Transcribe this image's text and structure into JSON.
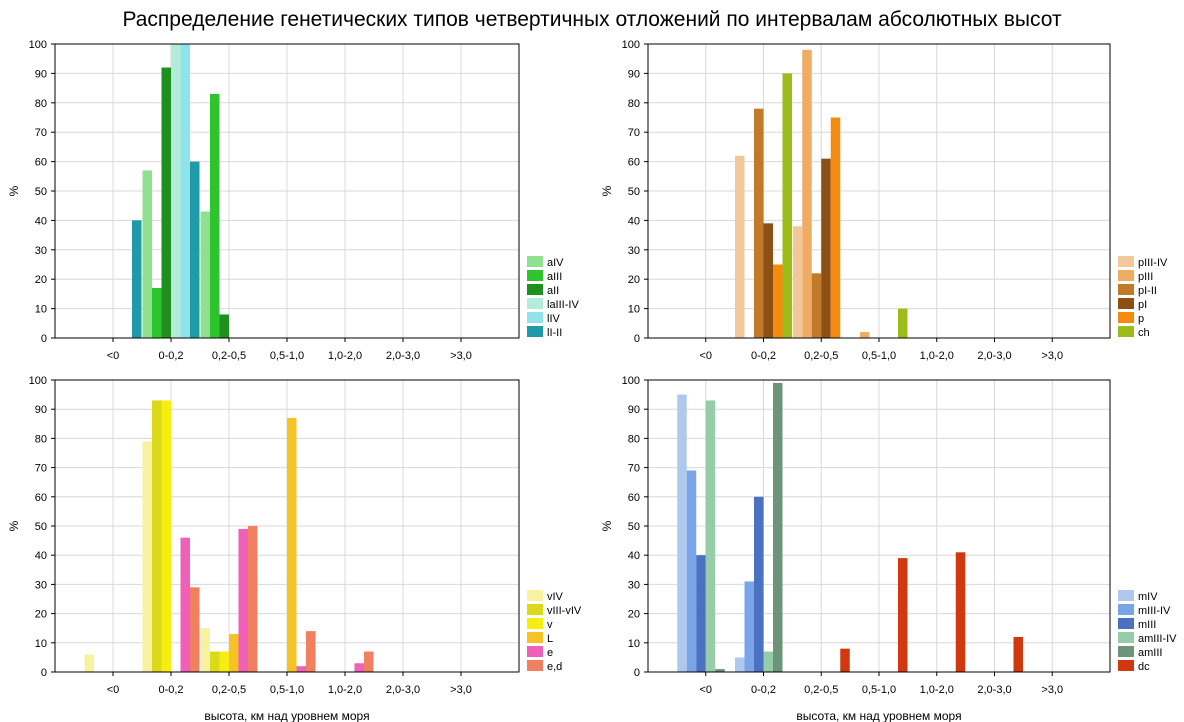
{
  "figure": {
    "title": "Распределение генетических типов четвертичных отложений по интервалам абсолютных высот"
  },
  "chart_data": [
    {
      "type": "bar",
      "ylabel": "%",
      "xlabel": "",
      "ylim": [
        0,
        100
      ],
      "yticks": [
        0,
        10,
        20,
        30,
        40,
        50,
        60,
        70,
        80,
        90,
        100
      ],
      "grid": true,
      "legend": "right-bottom",
      "categories": [
        "<0",
        "0-0,2",
        "0,2-0,5",
        "0,5-1,0",
        "1,0-2,0",
        "2,0-3,0",
        ">3,0"
      ],
      "series": [
        {
          "name": "aIV",
          "color": "#8fe08f",
          "values": [
            0,
            57,
            43,
            0,
            0,
            0,
            0
          ]
        },
        {
          "name": "aIII",
          "color": "#2ec42e",
          "values": [
            0,
            17,
            83,
            0,
            0,
            0,
            0
          ]
        },
        {
          "name": "aII",
          "color": "#1f8f1f",
          "values": [
            0,
            92,
            8,
            0,
            0,
            0,
            0
          ]
        },
        {
          "name": "laIII-IV",
          "color": "#b4ecdc",
          "values": [
            0,
            100,
            0,
            0,
            0,
            0,
            0
          ]
        },
        {
          "name": "lIV",
          "color": "#8fe4ea",
          "values": [
            0,
            100,
            0,
            0,
            0,
            0,
            0
          ]
        },
        {
          "name": "lI-II",
          "color": "#1f9aa8",
          "values": [
            40,
            60,
            0,
            0,
            0,
            0,
            0
          ]
        }
      ]
    },
    {
      "type": "bar",
      "ylabel": "%",
      "xlabel": "",
      "ylim": [
        0,
        100
      ],
      "yticks": [
        0,
        10,
        20,
        30,
        40,
        50,
        60,
        70,
        80,
        90,
        100
      ],
      "grid": true,
      "legend": "right-bottom",
      "categories": [
        "<0",
        "0-0,2",
        "0,2-0,5",
        "0,5-1,0",
        "1,0-2,0",
        "2,0-3,0",
        ">3,0"
      ],
      "series": [
        {
          "name": "pIII-IV",
          "color": "#f2c89a",
          "values": [
            0,
            62,
            38,
            0,
            0,
            0,
            0
          ]
        },
        {
          "name": "pIII",
          "color": "#f0ac62",
          "values": [
            0,
            0,
            98,
            2,
            0,
            0,
            0
          ]
        },
        {
          "name": "pI-II",
          "color": "#c07a2a",
          "values": [
            0,
            78,
            22,
            0,
            0,
            0,
            0
          ]
        },
        {
          "name": "pI",
          "color": "#8c4f14",
          "values": [
            0,
            39,
            61,
            0,
            0,
            0,
            0
          ]
        },
        {
          "name": "p",
          "color": "#f58a10",
          "values": [
            0,
            25,
            75,
            0,
            0,
            0,
            0
          ]
        },
        {
          "name": "ch",
          "color": "#9cbc1a",
          "values": [
            0,
            90,
            0,
            10,
            0,
            0,
            0
          ]
        }
      ]
    },
    {
      "type": "bar",
      "ylabel": "%",
      "xlabel": "высота, км над уровнем моря",
      "ylim": [
        0,
        100
      ],
      "yticks": [
        0,
        10,
        20,
        30,
        40,
        50,
        60,
        70,
        80,
        90,
        100
      ],
      "grid": true,
      "legend": "right-bottom",
      "categories": [
        "<0",
        "0-0,2",
        "0,2-0,5",
        "0,5-1,0",
        "1,0-2,0",
        "2,0-3,0",
        ">3,0"
      ],
      "series": [
        {
          "name": "vIV",
          "color": "#f8f2a0",
          "values": [
            6,
            79,
            15,
            0,
            0,
            0,
            0
          ]
        },
        {
          "name": "vIII-vIV",
          "color": "#dcd81a",
          "values": [
            0,
            93,
            7,
            0,
            0,
            0,
            0
          ]
        },
        {
          "name": "v",
          "color": "#f5ee10",
          "values": [
            0,
            93,
            7,
            0,
            0,
            0,
            0
          ]
        },
        {
          "name": "L",
          "color": "#f5c424",
          "values": [
            0,
            0,
            13,
            87,
            0,
            0,
            0
          ]
        },
        {
          "name": "e",
          "color": "#f060b8",
          "values": [
            0,
            46,
            49,
            2,
            3,
            0,
            0
          ]
        },
        {
          "name": "e,d",
          "color": "#f08060",
          "values": [
            0,
            29,
            50,
            14,
            7,
            0,
            0
          ]
        }
      ]
    },
    {
      "type": "bar",
      "ylabel": "%",
      "xlabel": "высота, км над уровнем моря",
      "ylim": [
        0,
        100
      ],
      "yticks": [
        0,
        10,
        20,
        30,
        40,
        50,
        60,
        70,
        80,
        90,
        100
      ],
      "grid": true,
      "legend": "right-bottom",
      "categories": [
        "<0",
        "0-0,2",
        "0,2-0,5",
        "0,5-1,0",
        "1,0-2,0",
        "2,0-3,0",
        ">3,0"
      ],
      "series": [
        {
          "name": "mIV",
          "color": "#aec8ee",
          "values": [
            95,
            5,
            0,
            0,
            0,
            0,
            0
          ]
        },
        {
          "name": "mIII-IV",
          "color": "#7aa4e8",
          "values": [
            69,
            31,
            0,
            0,
            0,
            0,
            0
          ]
        },
        {
          "name": "mIII",
          "color": "#4a72c0",
          "values": [
            40,
            60,
            0,
            0,
            0,
            0,
            0
          ]
        },
        {
          "name": "amIII-IV",
          "color": "#96cca8",
          "values": [
            93,
            7,
            0,
            0,
            0,
            0,
            0
          ]
        },
        {
          "name": "amIII",
          "color": "#6c9478",
          "values": [
            1,
            99,
            0,
            0,
            0,
            0,
            0
          ]
        },
        {
          "name": "dc",
          "color": "#d03810",
          "values": [
            0,
            0,
            8,
            39,
            41,
            12,
            0
          ]
        }
      ]
    }
  ]
}
